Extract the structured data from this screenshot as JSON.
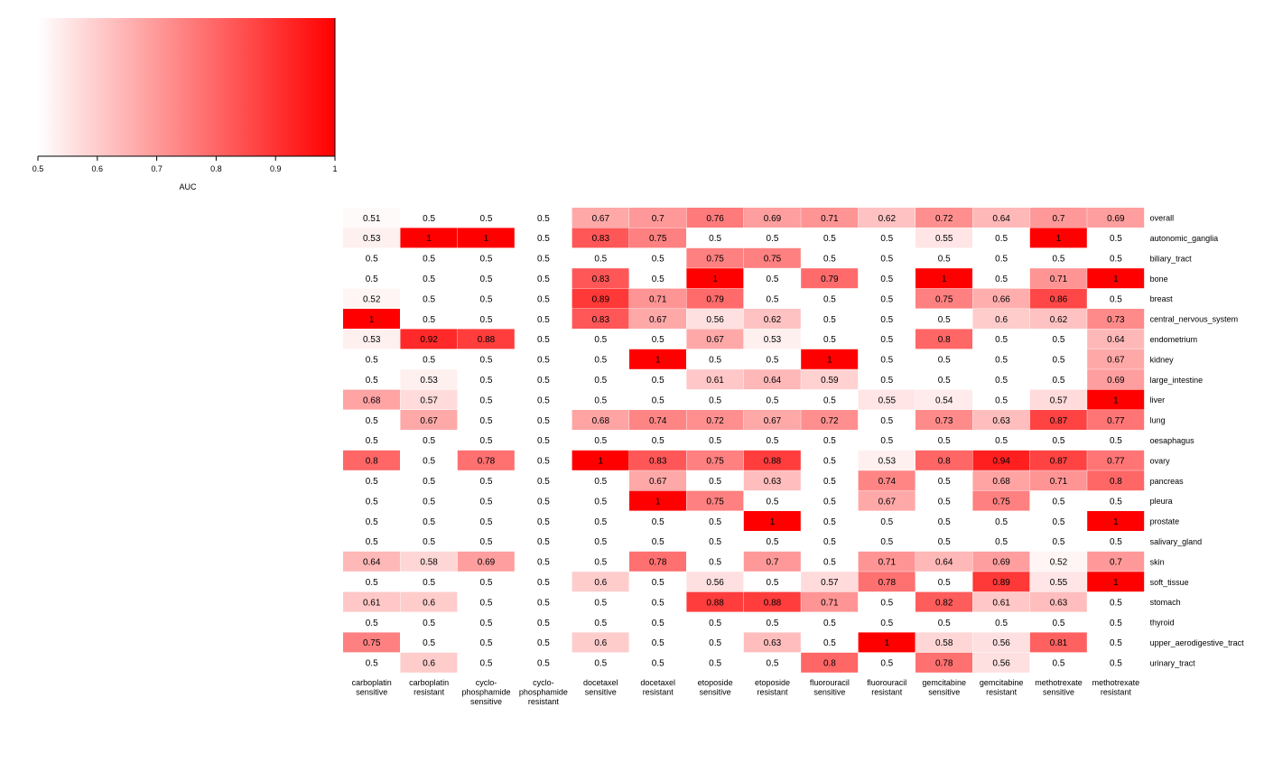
{
  "colors": {
    "low": "#ffffff",
    "high": "#ff0000",
    "legend_border": "#000000"
  },
  "chart_data": {
    "type": "heatmap",
    "legend": {
      "title": "AUC",
      "range": [
        0.5,
        1
      ],
      "ticks": [
        0.5,
        0.6,
        0.7,
        0.8,
        0.9,
        1
      ],
      "tick_labels": [
        "0.5",
        "0.6",
        "0.7",
        "0.8",
        "0.9",
        "1"
      ],
      "placement": "top-left"
    },
    "columns": [
      [
        "carboplatin",
        "sensitive"
      ],
      [
        "carboplatin",
        "resistant"
      ],
      [
        "cyclo-",
        "phosphamide",
        "sensitive"
      ],
      [
        "cyclo-",
        "phosphamide",
        "resistant"
      ],
      [
        "docetaxel",
        "sensitive"
      ],
      [
        "docetaxel",
        "resistant"
      ],
      [
        "etoposide",
        "sensitive"
      ],
      [
        "etoposide",
        "resistant"
      ],
      [
        "fluorouracil",
        "sensitive"
      ],
      [
        "fluorouracil",
        "resistant"
      ],
      [
        "gemcitabine",
        "sensitive"
      ],
      [
        "gemcitabine",
        "resistant"
      ],
      [
        "methotrexate",
        "sensitive"
      ],
      [
        "methotrexate",
        "resistant"
      ]
    ],
    "rows": [
      "overall",
      "autonomic_ganglia",
      "biliary_tract",
      "bone",
      "breast",
      "central_nervous_system",
      "endometrium",
      "kidney",
      "large_intestine",
      "liver",
      "lung",
      "oesaphagus",
      "ovary",
      "pancreas",
      "pleura",
      "prostate",
      "salivary_gland",
      "skin",
      "soft_tissue",
      "stomach",
      "thyroid",
      "upper_aerodigestive_tract",
      "urinary_tract"
    ],
    "values": [
      [
        0.51,
        0.5,
        0.5,
        0.5,
        0.67,
        0.7,
        0.76,
        0.69,
        0.71,
        0.62,
        0.72,
        0.64,
        0.7,
        0.69
      ],
      [
        0.53,
        1,
        1,
        0.5,
        0.83,
        0.75,
        0.5,
        0.5,
        0.5,
        0.5,
        0.55,
        0.5,
        1,
        0.5
      ],
      [
        0.5,
        0.5,
        0.5,
        0.5,
        0.5,
        0.5,
        0.75,
        0.75,
        0.5,
        0.5,
        0.5,
        0.5,
        0.5,
        0.5
      ],
      [
        0.5,
        0.5,
        0.5,
        0.5,
        0.83,
        0.5,
        1,
        0.5,
        0.79,
        0.5,
        1,
        0.5,
        0.71,
        1
      ],
      [
        0.52,
        0.5,
        0.5,
        0.5,
        0.89,
        0.71,
        0.79,
        0.5,
        0.5,
        0.5,
        0.75,
        0.66,
        0.86,
        0.5
      ],
      [
        1,
        0.5,
        0.5,
        0.5,
        0.83,
        0.67,
        0.56,
        0.62,
        0.5,
        0.5,
        0.5,
        0.6,
        0.62,
        0.73
      ],
      [
        0.53,
        0.92,
        0.88,
        0.5,
        0.5,
        0.5,
        0.67,
        0.53,
        0.5,
        0.5,
        0.8,
        0.5,
        0.5,
        0.64
      ],
      [
        0.5,
        0.5,
        0.5,
        0.5,
        0.5,
        1,
        0.5,
        0.5,
        1,
        0.5,
        0.5,
        0.5,
        0.5,
        0.67
      ],
      [
        0.5,
        0.53,
        0.5,
        0.5,
        0.5,
        0.5,
        0.61,
        0.64,
        0.59,
        0.5,
        0.5,
        0.5,
        0.5,
        0.69
      ],
      [
        0.68,
        0.57,
        0.5,
        0.5,
        0.5,
        0.5,
        0.5,
        0.5,
        0.5,
        0.55,
        0.54,
        0.5,
        0.57,
        1
      ],
      [
        0.5,
        0.67,
        0.5,
        0.5,
        0.68,
        0.74,
        0.72,
        0.67,
        0.72,
        0.5,
        0.73,
        0.63,
        0.87,
        0.77
      ],
      [
        0.5,
        0.5,
        0.5,
        0.5,
        0.5,
        0.5,
        0.5,
        0.5,
        0.5,
        0.5,
        0.5,
        0.5,
        0.5,
        0.5
      ],
      [
        0.8,
        0.5,
        0.78,
        0.5,
        1,
        0.83,
        0.75,
        0.88,
        0.5,
        0.53,
        0.8,
        0.94,
        0.87,
        0.77
      ],
      [
        0.5,
        0.5,
        0.5,
        0.5,
        0.5,
        0.67,
        0.5,
        0.63,
        0.5,
        0.74,
        0.5,
        0.68,
        0.71,
        0.8
      ],
      [
        0.5,
        0.5,
        0.5,
        0.5,
        0.5,
        1,
        0.75,
        0.5,
        0.5,
        0.67,
        0.5,
        0.75,
        0.5,
        0.5
      ],
      [
        0.5,
        0.5,
        0.5,
        0.5,
        0.5,
        0.5,
        0.5,
        1,
        0.5,
        0.5,
        0.5,
        0.5,
        0.5,
        1
      ],
      [
        0.5,
        0.5,
        0.5,
        0.5,
        0.5,
        0.5,
        0.5,
        0.5,
        0.5,
        0.5,
        0.5,
        0.5,
        0.5,
        0.5
      ],
      [
        0.64,
        0.58,
        0.69,
        0.5,
        0.5,
        0.78,
        0.5,
        0.7,
        0.5,
        0.71,
        0.64,
        0.69,
        0.52,
        0.7
      ],
      [
        0.5,
        0.5,
        0.5,
        0.5,
        0.6,
        0.5,
        0.56,
        0.5,
        0.57,
        0.78,
        0.5,
        0.89,
        0.55,
        1
      ],
      [
        0.61,
        0.6,
        0.5,
        0.5,
        0.5,
        0.5,
        0.88,
        0.88,
        0.71,
        0.5,
        0.82,
        0.61,
        0.63,
        0.5
      ],
      [
        0.5,
        0.5,
        0.5,
        0.5,
        0.5,
        0.5,
        0.5,
        0.5,
        0.5,
        0.5,
        0.5,
        0.5,
        0.5,
        0.5
      ],
      [
        0.75,
        0.5,
        0.5,
        0.5,
        0.6,
        0.5,
        0.5,
        0.63,
        0.5,
        1,
        0.58,
        0.56,
        0.81,
        0.5
      ],
      [
        0.5,
        0.6,
        0.5,
        0.5,
        0.5,
        0.5,
        0.5,
        0.5,
        0.8,
        0.5,
        0.78,
        0.56,
        0.5,
        0.5
      ]
    ]
  }
}
